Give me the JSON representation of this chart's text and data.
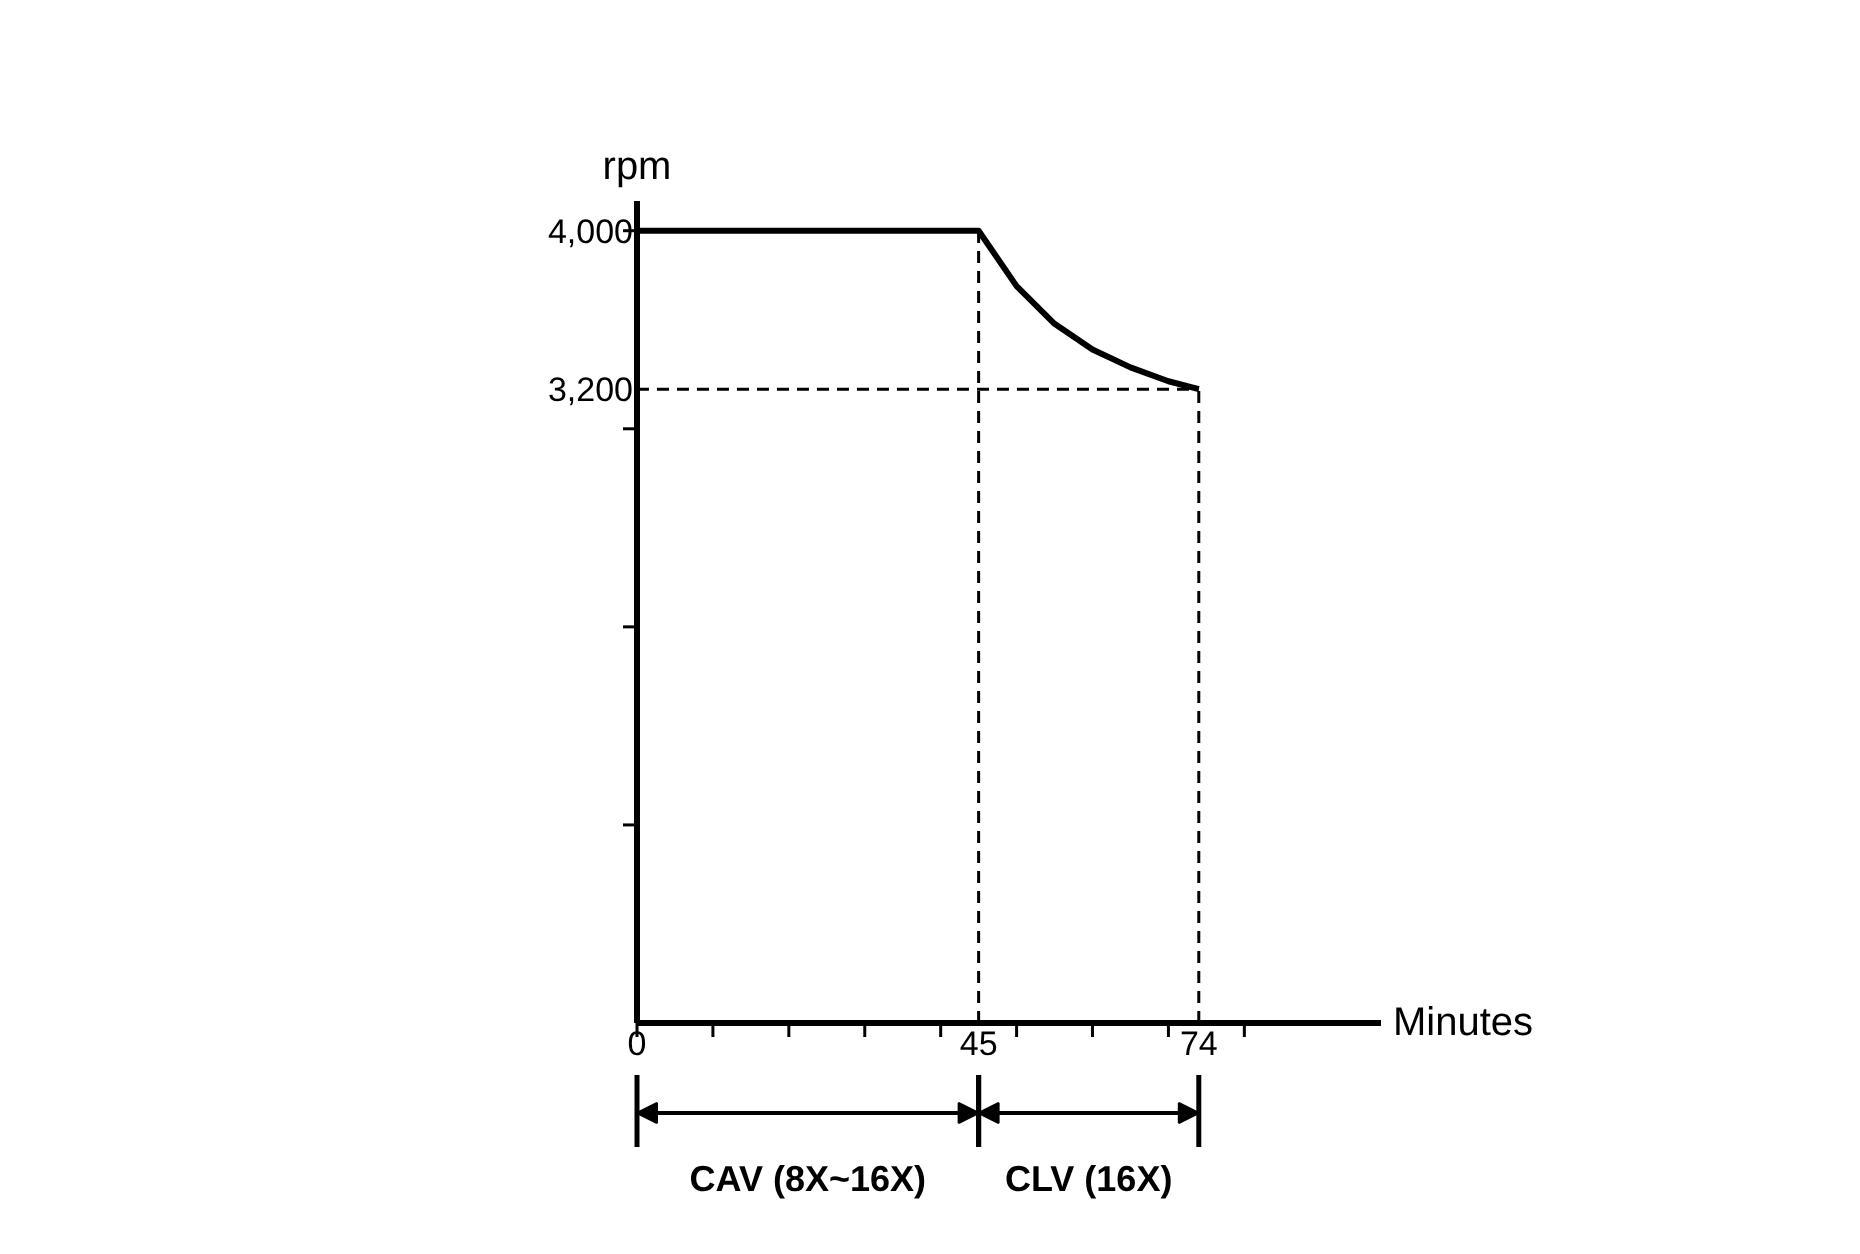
{
  "chart_data": {
    "type": "line",
    "xlabel": "Minutes",
    "ylabel": "rpm",
    "x": [
      0,
      45,
      50,
      55,
      60,
      65,
      70,
      74
    ],
    "series": [
      {
        "color": "#000000",
        "values": [
          4000,
          4000,
          3720,
          3530,
          3400,
          3310,
          3240,
          3200
        ]
      }
    ],
    "xlim": [
      0,
      98
    ],
    "ylim": [
      0,
      4150
    ],
    "xticks": [
      0,
      {
        "value": 10,
        "label": null
      },
      {
        "value": 20,
        "label": null
      },
      {
        "value": 30,
        "label": null
      },
      {
        "value": 40,
        "label": null
      },
      45,
      {
        "value": 50,
        "label": null
      },
      {
        "value": 60,
        "label": null
      },
      {
        "value": 70,
        "label": null
      },
      74,
      {
        "value": 80,
        "label": null
      }
    ],
    "yticks": [
      {
        "value": 1000,
        "label": null
      },
      {
        "value": 2000,
        "label": null
      },
      {
        "value": 3000,
        "label": null
      },
      {
        "value": 3200,
        "label": "3,200"
      },
      {
        "value": 4000,
        "label": "4,000"
      }
    ],
    "ref_lines": [
      {
        "axis": "x",
        "value": 45,
        "line_style": "dashed"
      },
      {
        "axis": "x",
        "value": 74,
        "line_style": "dashed"
      },
      {
        "axis": "y",
        "value": 3200,
        "line_style": "dashed"
      }
    ],
    "annotations": [
      "CAV (8X~16X)",
      "CLV (16X)"
    ],
    "line_style": "solid"
  }
}
